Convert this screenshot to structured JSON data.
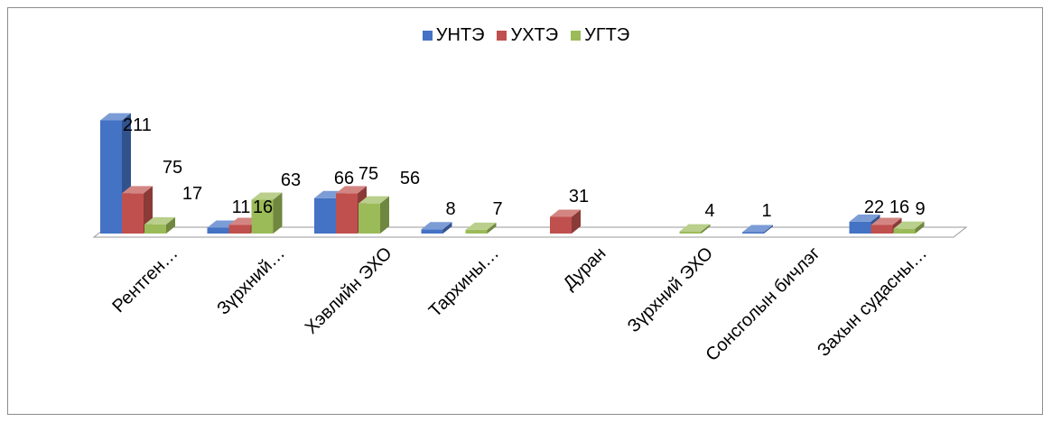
{
  "chart_data": {
    "type": "bar",
    "title": "",
    "xlabel": "",
    "ylabel": "",
    "categories": [
      "Рентген…",
      "Зүрхний…",
      "Хэвлийн ЭХО",
      "Тархины…",
      "Дуран",
      "Зүрхний ЭХО",
      "Сонсголын бичлэг",
      "Захын судасны…"
    ],
    "series": [
      {
        "name": "УНТЭ",
        "color": "#4472C4",
        "values": [
          211,
          11,
          66,
          8,
          null,
          null,
          1,
          22
        ]
      },
      {
        "name": "УХТЭ",
        "color": "#C0504D",
        "values": [
          75,
          16,
          75,
          null,
          31,
          null,
          null,
          16
        ]
      },
      {
        "name": "УГТЭ",
        "color": "#9BBB59",
        "values": [
          17,
          63,
          56,
          7,
          null,
          4,
          null,
          9
        ]
      }
    ],
    "legend_position": "top",
    "grid": false,
    "three_d": true
  }
}
